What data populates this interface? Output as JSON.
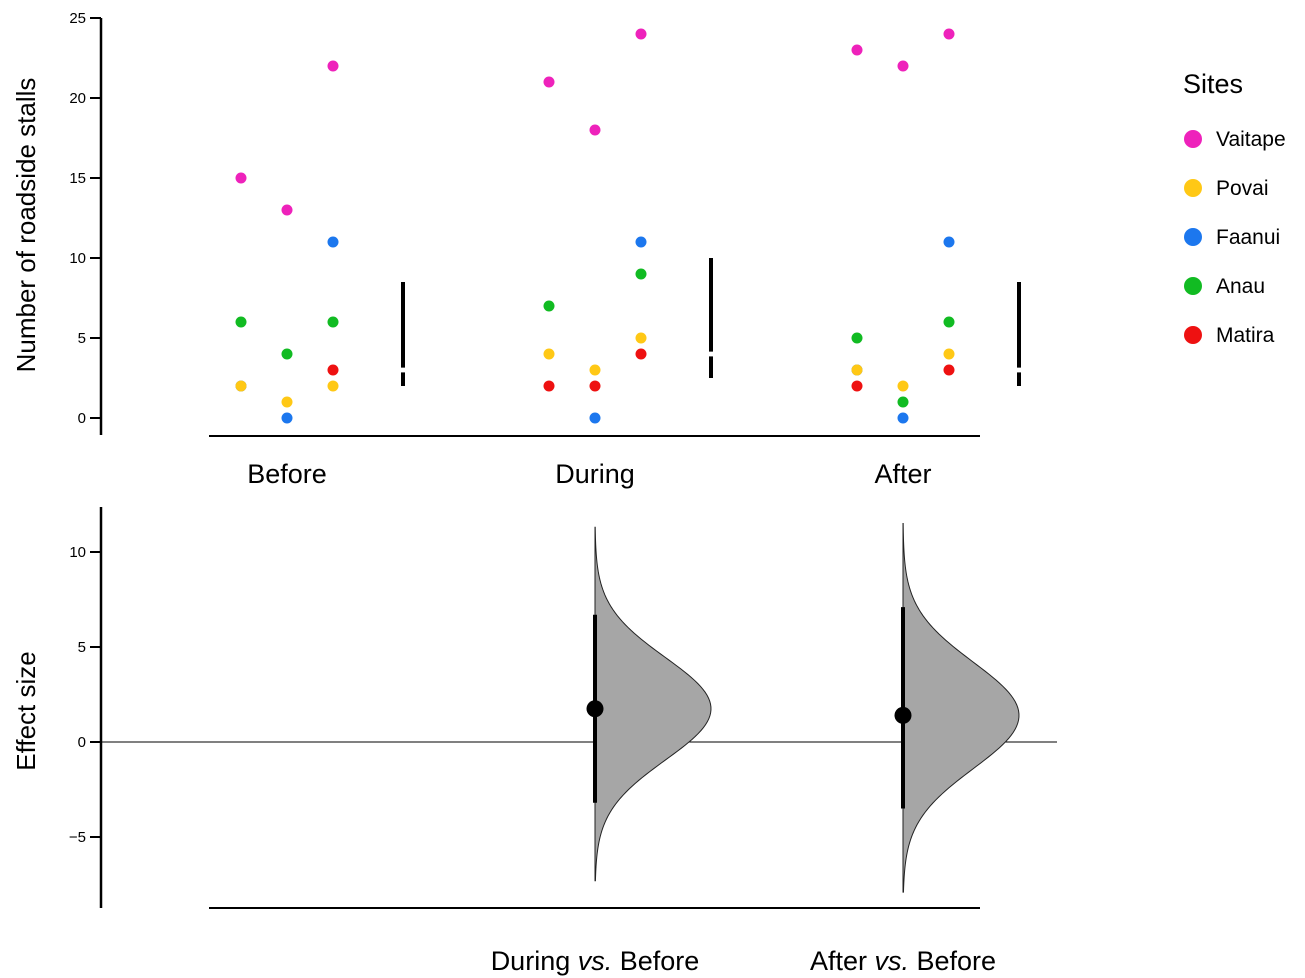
{
  "chart_data": [
    {
      "type": "scatter",
      "ylabel": "Number of roadside stalls",
      "ylim": [
        0,
        25
      ],
      "yticks": [
        0,
        5,
        10,
        15,
        20,
        25
      ],
      "categories": [
        "Before",
        "During",
        "After"
      ],
      "legend": {
        "title": "Sites",
        "placement": "right",
        "entries": [
          {
            "name": "Vaitape",
            "color": "#ee22bb"
          },
          {
            "name": "Povai",
            "color": "#ffc815"
          },
          {
            "name": "Faanui",
            "color": "#1c77ee"
          },
          {
            "name": "Anau",
            "color": "#11bb22"
          },
          {
            "name": "Matira",
            "color": "#ee1111"
          }
        ]
      },
      "series": [
        {
          "name": "Vaitape",
          "color": "#ee22bb",
          "points": [
            {
              "cat": "Before",
              "x": 0,
              "y": 15
            },
            {
              "cat": "Before",
              "x": 1,
              "y": 13
            },
            {
              "cat": "Before",
              "x": 2,
              "y": 22
            },
            {
              "cat": "During",
              "x": 0,
              "y": 21
            },
            {
              "cat": "During",
              "x": 1,
              "y": 18
            },
            {
              "cat": "During",
              "x": 2,
              "y": 24
            },
            {
              "cat": "After",
              "x": 0,
              "y": 23
            },
            {
              "cat": "After",
              "x": 1,
              "y": 22
            },
            {
              "cat": "After",
              "x": 2,
              "y": 24
            }
          ]
        },
        {
          "name": "Povai",
          "color": "#ffc815",
          "points": [
            {
              "cat": "Before",
              "x": 0,
              "y": 2
            },
            {
              "cat": "Before",
              "x": 1,
              "y": 1
            },
            {
              "cat": "Before",
              "x": 2,
              "y": 2
            },
            {
              "cat": "During",
              "x": 0,
              "y": 4
            },
            {
              "cat": "During",
              "x": 1,
              "y": 3
            },
            {
              "cat": "During",
              "x": 2,
              "y": 5
            },
            {
              "cat": "After",
              "x": 0,
              "y": 3
            },
            {
              "cat": "After",
              "x": 1,
              "y": 2
            },
            {
              "cat": "After",
              "x": 2,
              "y": 4
            }
          ]
        },
        {
          "name": "Faanui",
          "color": "#1c77ee",
          "points": [
            {
              "cat": "Before",
              "x": 0,
              "y": 2
            },
            {
              "cat": "Before",
              "x": 1,
              "y": 0
            },
            {
              "cat": "Before",
              "x": 2,
              "y": 11
            },
            {
              "cat": "During",
              "x": 1,
              "y": 0
            },
            {
              "cat": "During",
              "x": 2,
              "y": 11
            },
            {
              "cat": "After",
              "x": 0,
              "y": 3
            },
            {
              "cat": "After",
              "x": 1,
              "y": 0
            },
            {
              "cat": "After",
              "x": 2,
              "y": 11
            }
          ]
        },
        {
          "name": "Anau",
          "color": "#11bb22",
          "points": [
            {
              "cat": "Before",
              "x": 0,
              "y": 6
            },
            {
              "cat": "Before",
              "x": 1,
              "y": 4
            },
            {
              "cat": "Before",
              "x": 2,
              "y": 6
            },
            {
              "cat": "During",
              "x": 0,
              "y": 7
            },
            {
              "cat": "During",
              "x": 2,
              "y": 9
            },
            {
              "cat": "After",
              "x": 0,
              "y": 5
            },
            {
              "cat": "After",
              "x": 1,
              "y": 1
            },
            {
              "cat": "After",
              "x": 2,
              "y": 6
            }
          ]
        },
        {
          "name": "Matira",
          "color": "#ee1111",
          "points": [
            {
              "cat": "Before",
              "x": 2,
              "y": 3
            },
            {
              "cat": "During",
              "x": 0,
              "y": 2
            },
            {
              "cat": "During",
              "x": 1,
              "y": 2
            },
            {
              "cat": "During",
              "x": 2,
              "y": 4
            },
            {
              "cat": "After",
              "x": 0,
              "y": 2
            },
            {
              "cat": "After",
              "x": 2,
              "y": 3
            }
          ]
        }
      ],
      "summary_bars": [
        {
          "cat": "Before",
          "low": 2,
          "high": 8.5,
          "gap": 3
        },
        {
          "cat": "During",
          "low": 2.5,
          "high": 10,
          "gap": 4
        },
        {
          "cat": "After",
          "low": 2,
          "high": 8.5,
          "gap": 3
        }
      ]
    },
    {
      "type": "area",
      "ylabel": "Effect size",
      "ylim": [
        -9,
        12
      ],
      "yticks": [
        -5,
        0,
        5,
        10
      ],
      "categories": [
        "",
        "During vs. Before",
        "After vs. Before"
      ],
      "category_parts": [
        {
          "pre": "During ",
          "em": "vs.",
          "post": " Before"
        },
        {
          "pre": "After ",
          "em": "vs.",
          "post": " Before"
        }
      ],
      "effects": [
        {
          "cat": "During vs. Before",
          "estimate": 1.75,
          "ci_low": -3.2,
          "ci_high": 6.7,
          "dist_min": -7.3,
          "dist_max": 11.3,
          "sd": 2.7
        },
        {
          "cat": "After vs. Before",
          "estimate": 1.4,
          "ci_low": -3.5,
          "ci_high": 7.1,
          "dist_min": -7.9,
          "dist_max": 11.5,
          "sd": 2.8
        }
      ]
    }
  ]
}
